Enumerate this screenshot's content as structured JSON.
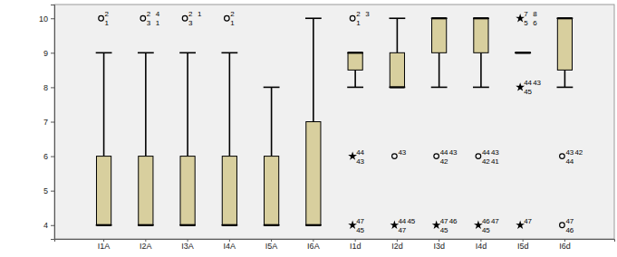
{
  "chart_data": {
    "type": "boxplot",
    "categories": [
      "I1A",
      "I2A",
      "I3A",
      "I4A",
      "I5A",
      "I6A",
      "I1d",
      "I2d",
      "I3d",
      "I4d",
      "I5d",
      "I6d"
    ],
    "color": "#d8cf9e",
    "ylim": [
      3.6,
      10.4
    ],
    "yticks": [
      4,
      5,
      6,
      7,
      8,
      9,
      10
    ],
    "boxes": [
      {
        "min": 4,
        "q1": 4,
        "median": 4,
        "q3": 6,
        "max": 9,
        "outliers": [
          {
            "value": 10,
            "marker": "circle",
            "labels": [
              "2",
              "1"
            ]
          }
        ]
      },
      {
        "min": 4,
        "q1": 4,
        "median": 4,
        "q3": 6,
        "max": 9,
        "outliers": [
          {
            "value": 10,
            "marker": "circle",
            "labels": [
              "2",
              "4",
              "3",
              "1"
            ]
          }
        ]
      },
      {
        "min": 4,
        "q1": 4,
        "median": 4,
        "q3": 6,
        "max": 9,
        "outliers": [
          {
            "value": 10,
            "marker": "circle",
            "labels": [
              "2",
              "1",
              "3"
            ]
          }
        ]
      },
      {
        "min": 4,
        "q1": 4,
        "median": 4,
        "q3": 6,
        "max": 9,
        "outliers": [
          {
            "value": 10,
            "marker": "circle",
            "labels": [
              "2",
              "1"
            ]
          }
        ]
      },
      {
        "min": 4,
        "q1": 4,
        "median": 4,
        "q3": 6,
        "max": 8,
        "outliers": []
      },
      {
        "min": 4,
        "q1": 4,
        "median": 4,
        "q3": 7,
        "max": 10,
        "outliers": []
      },
      {
        "min": 8,
        "q1": 8.5,
        "median": 9,
        "q3": 9,
        "max": 9,
        "outliers": [
          {
            "value": 10,
            "marker": "circle",
            "labels": [
              "2",
              "3",
              "1"
            ]
          },
          {
            "value": 6,
            "marker": "star",
            "labels": [
              "44",
              "43"
            ]
          },
          {
            "value": 4,
            "marker": "star",
            "labels": [
              "47",
              "45"
            ]
          }
        ]
      },
      {
        "min": 8,
        "q1": 8,
        "median": 8,
        "q3": 9,
        "max": 10,
        "outliers": [
          {
            "value": 6,
            "marker": "circle",
            "labels": [
              "43"
            ]
          },
          {
            "value": 4,
            "marker": "star",
            "labels": [
              "44",
              "45",
              "47"
            ]
          }
        ]
      },
      {
        "min": 8,
        "q1": 9,
        "median": 10,
        "q3": 10,
        "max": 10,
        "outliers": [
          {
            "value": 6,
            "marker": "circle",
            "labels": [
              "44",
              "43",
              "42"
            ]
          },
          {
            "value": 4,
            "marker": "star",
            "labels": [
              "47",
              "46",
              "45"
            ]
          }
        ]
      },
      {
        "min": 8,
        "q1": 9,
        "median": 10,
        "q3": 10,
        "max": 10,
        "outliers": [
          {
            "value": 6,
            "marker": "circle",
            "labels": [
              "44",
              "43",
              "42",
              "41"
            ]
          },
          {
            "value": 4,
            "marker": "star",
            "labels": [
              "46",
              "47",
              "45"
            ]
          }
        ]
      },
      {
        "min": 9,
        "q1": 9,
        "median": 9,
        "q3": 9,
        "max": 9,
        "outliers": [
          {
            "value": 10,
            "marker": "star",
            "labels": [
              "7",
              "8",
              "5",
              "6"
            ]
          },
          {
            "value": 8,
            "marker": "star",
            "labels": [
              "44",
              "43",
              "45"
            ]
          },
          {
            "value": 4,
            "marker": "star",
            "labels": [
              "47"
            ]
          }
        ]
      },
      {
        "min": 8,
        "q1": 8.5,
        "median": 10,
        "q3": 10,
        "max": 10,
        "outliers": [
          {
            "value": 6,
            "marker": "circle",
            "labels": [
              "43",
              "42",
              "44"
            ]
          },
          {
            "value": 4,
            "marker": "circle",
            "labels": [
              "47",
              "46"
            ]
          }
        ]
      }
    ]
  }
}
